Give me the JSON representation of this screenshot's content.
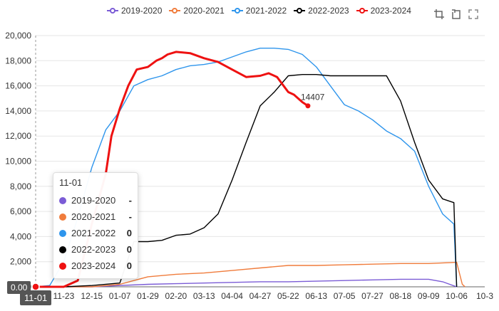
{
  "toolbox": {
    "icons": [
      "crop-icon",
      "restore-icon",
      "fullscreen-icon"
    ]
  },
  "tooltip": {
    "title": "11-01",
    "rows": [
      {
        "name": "2019-2020",
        "value": "-",
        "color": "#7b5cd6"
      },
      {
        "name": "2020-2021",
        "value": "-",
        "color": "#f07c3c"
      },
      {
        "name": "2021-2022",
        "value": "0",
        "color": "#2e95ec"
      },
      {
        "name": "2022-2023",
        "value": "0",
        "color": "#000000"
      },
      {
        "name": "2023-2024",
        "value": "0",
        "color": "#ee1111"
      }
    ]
  },
  "axis_pointer": {
    "x_label": "11-01",
    "y_label": "0.00"
  },
  "chart_data": {
    "type": "line",
    "x": [
      "11-01",
      "11-23",
      "12-15",
      "01-07",
      "01-29",
      "02-20",
      "03-13",
      "04-04",
      "04-27",
      "05-22",
      "06-13",
      "07-05",
      "07-27",
      "08-18",
      "09-09",
      "10-06",
      "10-3"
    ],
    "ylim": [
      0,
      20000
    ],
    "yticks": [
      "0.00",
      "2,000",
      "4,000",
      "6,000",
      "8,000",
      "10,000",
      "12,000",
      "14,000",
      "16,000",
      "18,000",
      "20,000"
    ],
    "grid": "horizontal",
    "legend_position": "top",
    "series": [
      {
        "name": "2019-2020",
        "color": "#7b5cd6",
        "points": [
          [
            0,
            0
          ],
          [
            2,
            0
          ],
          [
            3,
            100
          ],
          [
            4,
            200
          ],
          [
            5,
            250
          ],
          [
            6,
            300
          ],
          [
            7,
            350
          ],
          [
            8,
            400
          ],
          [
            9,
            400
          ],
          [
            10,
            450
          ],
          [
            11,
            500
          ],
          [
            12,
            550
          ],
          [
            13,
            600
          ],
          [
            14,
            600
          ],
          [
            14.5,
            400
          ],
          [
            15,
            0
          ]
        ]
      },
      {
        "name": "2020-2021",
        "color": "#f07c3c",
        "points": [
          [
            0,
            0
          ],
          [
            2,
            0
          ],
          [
            3,
            200
          ],
          [
            3.5,
            500
          ],
          [
            4,
            800
          ],
          [
            5,
            1000
          ],
          [
            6,
            1100
          ],
          [
            7,
            1300
          ],
          [
            8,
            1500
          ],
          [
            9,
            1700
          ],
          [
            10,
            1700
          ],
          [
            11,
            1750
          ],
          [
            12,
            1800
          ],
          [
            13,
            1850
          ],
          [
            14,
            1850
          ],
          [
            15,
            1950
          ],
          [
            15.2,
            200
          ],
          [
            15.3,
            0
          ]
        ]
      },
      {
        "name": "2021-2022",
        "color": "#2e95ec",
        "points": [
          [
            0,
            0
          ],
          [
            0.5,
            100
          ],
          [
            1,
            2000
          ],
          [
            1.5,
            5500
          ],
          [
            2,
            9500
          ],
          [
            2.5,
            12500
          ],
          [
            3,
            14000
          ],
          [
            3.5,
            16000
          ],
          [
            4,
            16500
          ],
          [
            4.5,
            16800
          ],
          [
            5,
            17300
          ],
          [
            5.5,
            17600
          ],
          [
            6,
            17700
          ],
          [
            6.5,
            17900
          ],
          [
            7,
            18300
          ],
          [
            7.5,
            18700
          ],
          [
            8,
            19000
          ],
          [
            8.5,
            19000
          ],
          [
            9,
            18900
          ],
          [
            9.5,
            18500
          ],
          [
            10,
            17500
          ],
          [
            10.5,
            16000
          ],
          [
            11,
            14500
          ],
          [
            11.5,
            14000
          ],
          [
            12,
            13300
          ],
          [
            12.5,
            12400
          ],
          [
            13,
            11800
          ],
          [
            13.5,
            10800
          ],
          [
            14,
            8000
          ],
          [
            14.5,
            5800
          ],
          [
            14.9,
            5000
          ],
          [
            15,
            0
          ]
        ]
      },
      {
        "name": "2022-2023",
        "color": "#000000",
        "points": [
          [
            0,
            0
          ],
          [
            1,
            0
          ],
          [
            2,
            100
          ],
          [
            3,
            300
          ],
          [
            3.5,
            3600
          ],
          [
            4,
            3600
          ],
          [
            4.5,
            3700
          ],
          [
            5,
            4100
          ],
          [
            5.5,
            4200
          ],
          [
            6,
            4700
          ],
          [
            6.5,
            5800
          ],
          [
            7,
            8500
          ],
          [
            7.5,
            11500
          ],
          [
            8,
            14400
          ],
          [
            8.5,
            15500
          ],
          [
            9,
            16800
          ],
          [
            9.5,
            16900
          ],
          [
            10,
            16900
          ],
          [
            10.5,
            16800
          ],
          [
            11,
            16800
          ],
          [
            11.5,
            16800
          ],
          [
            12,
            16800
          ],
          [
            12.5,
            16800
          ],
          [
            13,
            14800
          ],
          [
            13.5,
            11500
          ],
          [
            14,
            8500
          ],
          [
            14.5,
            7000
          ],
          [
            14.9,
            6700
          ],
          [
            15,
            0
          ]
        ]
      },
      {
        "name": "2023-2024",
        "color": "#ee1111",
        "points": [
          [
            0,
            0
          ],
          [
            1,
            0
          ],
          [
            1.5,
            500
          ],
          [
            2,
            5000
          ],
          [
            2.5,
            9000
          ],
          [
            2.7,
            12000
          ],
          [
            3,
            14200
          ],
          [
            3.3,
            16000
          ],
          [
            3.6,
            17300
          ],
          [
            4,
            17500
          ],
          [
            4.3,
            18000
          ],
          [
            4.5,
            18200
          ],
          [
            4.7,
            18500
          ],
          [
            5,
            18700
          ],
          [
            5.5,
            18600
          ],
          [
            6,
            18200
          ],
          [
            6.5,
            17900
          ],
          [
            7,
            17300
          ],
          [
            7.5,
            16700
          ],
          [
            8,
            16800
          ],
          [
            8.3,
            17000
          ],
          [
            8.6,
            16700
          ],
          [
            9,
            15500
          ],
          [
            9.2,
            15300
          ],
          [
            9.5,
            14700
          ],
          [
            9.7,
            14407
          ]
        ],
        "end_label": "14407"
      }
    ]
  }
}
